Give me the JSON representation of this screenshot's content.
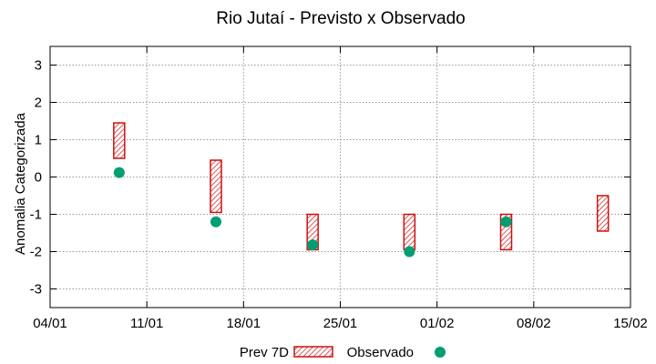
{
  "chart_data": {
    "type": "scatter",
    "title": "Rio Jutaí - Previsto x Observado",
    "xlabel": "",
    "ylabel": "Anomalia Categorizada",
    "x_ticks": [
      "04/01",
      "11/01",
      "18/01",
      "25/01",
      "01/02",
      "08/02",
      "15/02"
    ],
    "x_tick_days": [
      0,
      7,
      14,
      21,
      28,
      35,
      42
    ],
    "ylim": [
      -3.5,
      3.5
    ],
    "y_ticks": [
      3,
      2,
      1,
      0,
      -1,
      -2,
      -3
    ],
    "grid": true,
    "legend_position": "bottom",
    "series": [
      {
        "name": "Prev 7D",
        "kind": "interval",
        "color": "#cc1111",
        "points": [
          {
            "day": 5,
            "low": 0.5,
            "high": 1.45
          },
          {
            "day": 12,
            "low": -0.95,
            "high": 0.45
          },
          {
            "day": 19,
            "low": -1.95,
            "high": -1.0
          },
          {
            "day": 26,
            "low": -1.95,
            "high": -1.0
          },
          {
            "day": 33,
            "low": -1.95,
            "high": -1.0
          },
          {
            "day": 40,
            "low": -1.45,
            "high": -0.5
          }
        ]
      },
      {
        "name": "Observado",
        "kind": "point",
        "color": "#009e73",
        "points": [
          {
            "day": 5,
            "value": 0.12
          },
          {
            "day": 12,
            "value": -1.2
          },
          {
            "day": 19,
            "value": -1.82
          },
          {
            "day": 26,
            "value": -2.0
          },
          {
            "day": 33,
            "value": -1.2
          }
        ]
      }
    ]
  }
}
